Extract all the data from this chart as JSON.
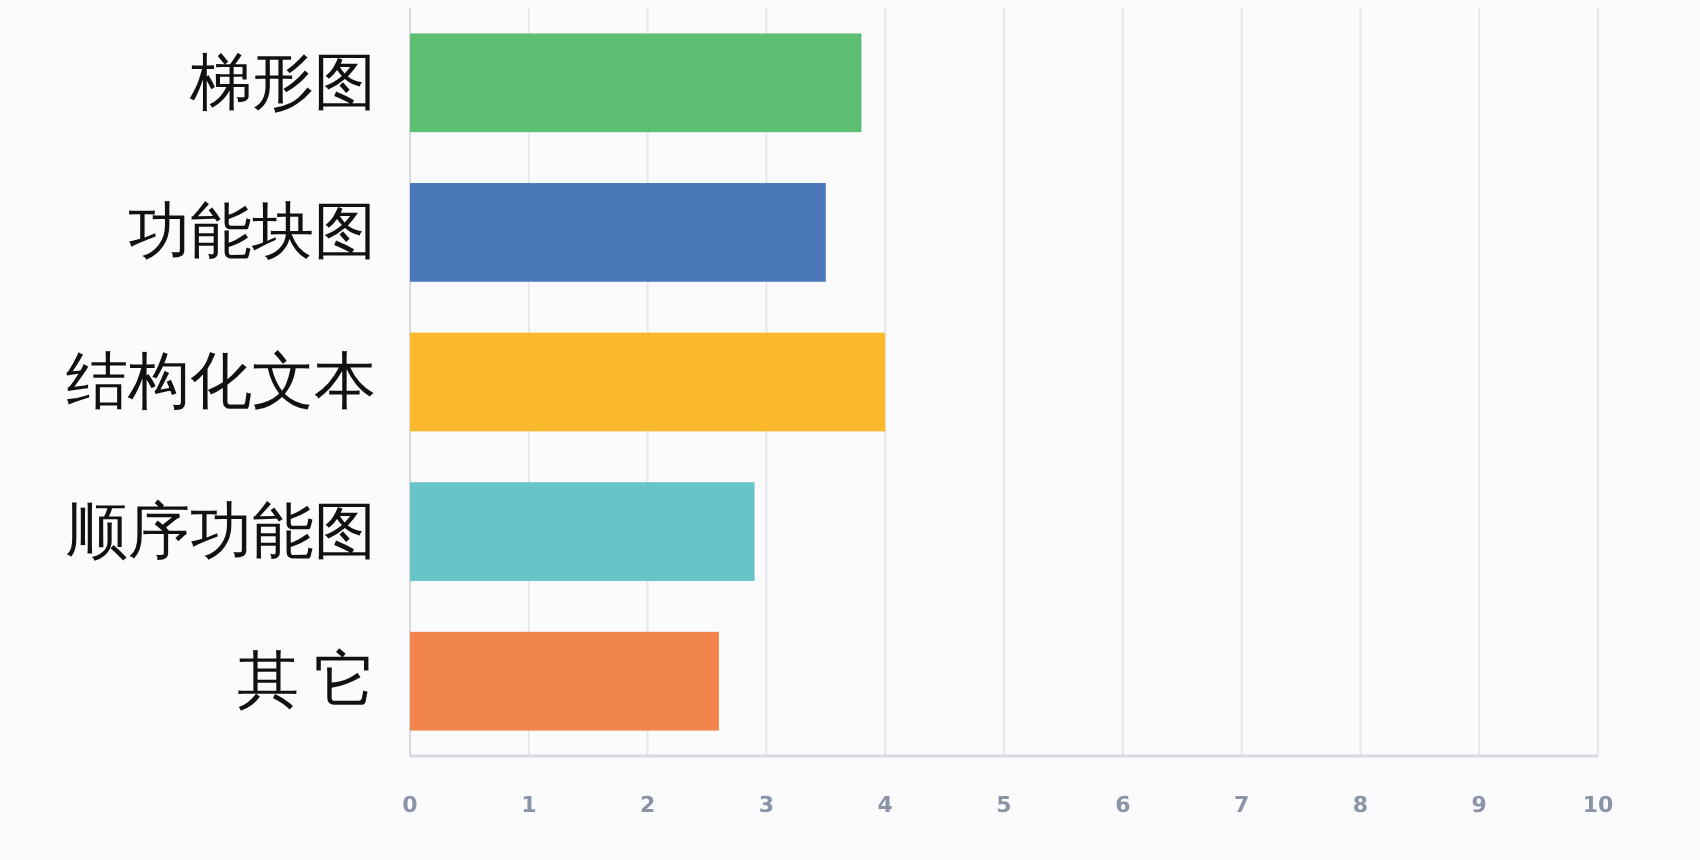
{
  "chart_data": {
    "type": "bar",
    "orientation": "horizontal",
    "categories": [
      "梯形图",
      "功能块图",
      "结构化文本",
      "顺序功能图",
      "其 它"
    ],
    "values": [
      3.8,
      3.5,
      4.0,
      2.9,
      2.6
    ],
    "colors": [
      "#5cbf72",
      "#4a78b8",
      "#fdb92c",
      "#68c4c9",
      "#f2854a"
    ],
    "xlim": [
      0,
      10
    ],
    "xticks": [
      0,
      1,
      2,
      3,
      4,
      5,
      6,
      7,
      8,
      9,
      10
    ],
    "grid": "x"
  }
}
